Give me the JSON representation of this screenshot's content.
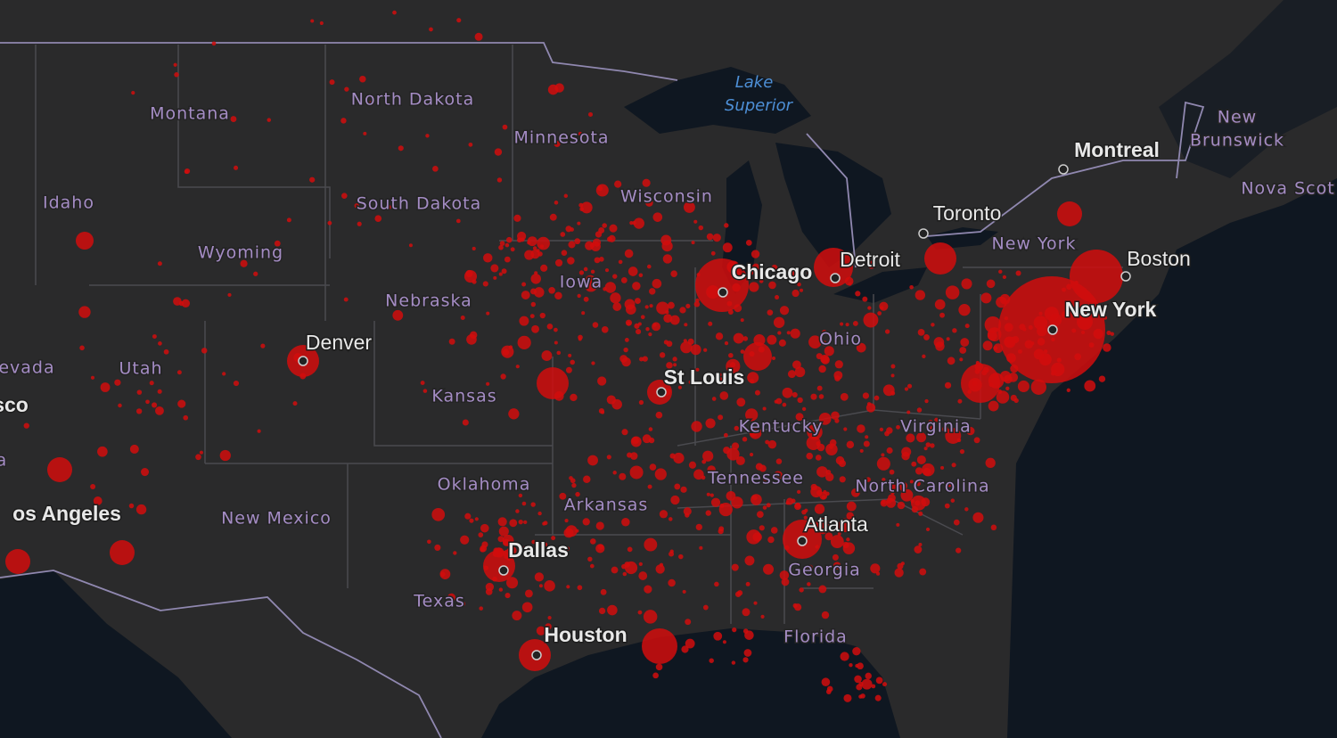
{
  "map": {
    "state_labels": [
      "Montana",
      "North Dakota",
      "Minnesota",
      "Idaho",
      "South Dakota",
      "Wisconsin",
      "Wyoming",
      "Iowa",
      "Nebraska",
      "Utah",
      "evada",
      "Kansas",
      "Ohio",
      "Kentucky",
      "Virginia",
      "Oklahoma",
      "Tennessee",
      "North Carolina",
      "Arkansas",
      "New Mexico",
      "Texas",
      "Georgia",
      "Florida",
      "New York",
      "a"
    ],
    "city_labels": [
      "Montreal",
      "Toronto",
      "Chicago",
      "Detroit",
      "Boston",
      "New York",
      "Denver",
      "St Louis",
      "Dallas",
      "Houston",
      "Atlanta",
      "os Angeles",
      "sco"
    ],
    "water_labels": [
      [
        "Lake",
        "Superior"
      ]
    ],
    "province_labels": [
      [
        "New",
        "Brunswick"
      ],
      [
        "Nova Scot"
      ]
    ]
  }
}
